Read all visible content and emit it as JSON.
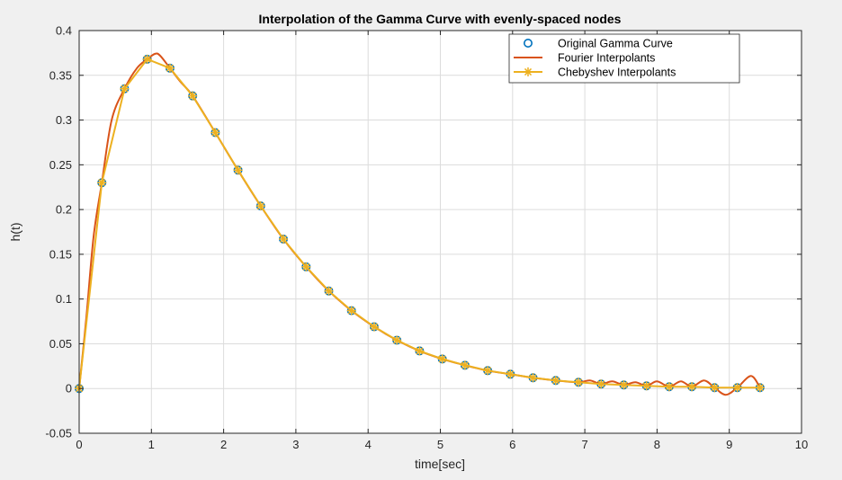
{
  "chart_data": {
    "type": "line",
    "title": "Interpolation of the Gamma Curve with evenly-spaced nodes",
    "xlabel": "time[sec]",
    "ylabel": "h(t)",
    "xlim": [
      0,
      10
    ],
    "ylim": [
      -0.05,
      0.4
    ],
    "xticks": [
      "0",
      "1",
      "2",
      "3",
      "4",
      "5",
      "6",
      "7",
      "8",
      "9",
      "10"
    ],
    "yticks": [
      "-0.05",
      "0",
      "0.05",
      "0.1",
      "0.15",
      "0.2",
      "0.25",
      "0.3",
      "0.35",
      "0.4"
    ],
    "grid": true,
    "legend_position": "top-right",
    "series": [
      {
        "name": "Original Gamma Curve",
        "color": "#0072BD",
        "marker": "circle",
        "x": [
          0,
          0.314,
          0.628,
          0.942,
          1.257,
          1.571,
          1.885,
          2.199,
          2.513,
          2.827,
          3.142,
          3.456,
          3.77,
          4.084,
          4.398,
          4.712,
          5.027,
          5.341,
          5.655,
          5.969,
          6.283,
          6.597,
          6.912,
          7.226,
          7.54,
          7.854,
          8.168,
          8.482,
          8.796,
          9.111,
          9.425
        ],
        "y": [
          0,
          0.23,
          0.335,
          0.368,
          0.358,
          0.327,
          0.286,
          0.244,
          0.204,
          0.167,
          0.136,
          0.109,
          0.087,
          0.069,
          0.054,
          0.042,
          0.033,
          0.026,
          0.02,
          0.016,
          0.012,
          0.009,
          0.007,
          0.005,
          0.004,
          0.003,
          0.002,
          0.002,
          0.001,
          0.001,
          0.001
        ]
      },
      {
        "name": "Fourier Interpolants",
        "color": "#D95319",
        "marker": "none",
        "x": [
          0,
          0.1,
          0.2,
          0.314,
          0.45,
          0.628,
          0.8,
          0.942,
          1.05,
          1.12,
          1.257,
          1.4,
          1.571,
          1.885,
          2.199,
          2.513,
          2.827,
          3.142,
          3.456,
          3.77,
          4.084,
          4.398,
          4.712,
          5.027,
          5.341,
          5.655,
          5.969,
          6.283,
          6.597,
          6.912,
          7.07,
          7.226,
          7.38,
          7.54,
          7.7,
          7.854,
          8.0,
          8.168,
          8.33,
          8.482,
          8.65,
          8.796,
          8.95,
          9.111,
          9.3,
          9.425
        ],
        "y": [
          0,
          0.08,
          0.17,
          0.23,
          0.3,
          0.335,
          0.358,
          0.368,
          0.374,
          0.372,
          0.358,
          0.343,
          0.327,
          0.286,
          0.244,
          0.204,
          0.167,
          0.136,
          0.109,
          0.087,
          0.069,
          0.054,
          0.042,
          0.033,
          0.026,
          0.02,
          0.016,
          0.012,
          0.009,
          0.007,
          0.009,
          0.005,
          0.008,
          0.004,
          0.007,
          0.003,
          0.008,
          0.002,
          0.008,
          0.002,
          0.009,
          0.001,
          -0.007,
          0.001,
          0.014,
          0.001
        ]
      },
      {
        "name": "Chebyshev Interpolants",
        "color": "#EDB120",
        "marker": "asterisk",
        "x": [
          0,
          0.314,
          0.628,
          0.942,
          1.257,
          1.571,
          1.885,
          2.199,
          2.513,
          2.827,
          3.142,
          3.456,
          3.77,
          4.084,
          4.398,
          4.712,
          5.027,
          5.341,
          5.655,
          5.969,
          6.283,
          6.597,
          6.912,
          7.226,
          7.54,
          7.854,
          8.168,
          8.482,
          8.796,
          9.111,
          9.425
        ],
        "y": [
          0,
          0.23,
          0.335,
          0.368,
          0.358,
          0.327,
          0.286,
          0.244,
          0.204,
          0.167,
          0.136,
          0.109,
          0.087,
          0.069,
          0.054,
          0.042,
          0.033,
          0.026,
          0.02,
          0.016,
          0.012,
          0.009,
          0.007,
          0.005,
          0.004,
          0.003,
          0.002,
          0.002,
          0.001,
          0.001,
          0.001
        ]
      }
    ]
  }
}
